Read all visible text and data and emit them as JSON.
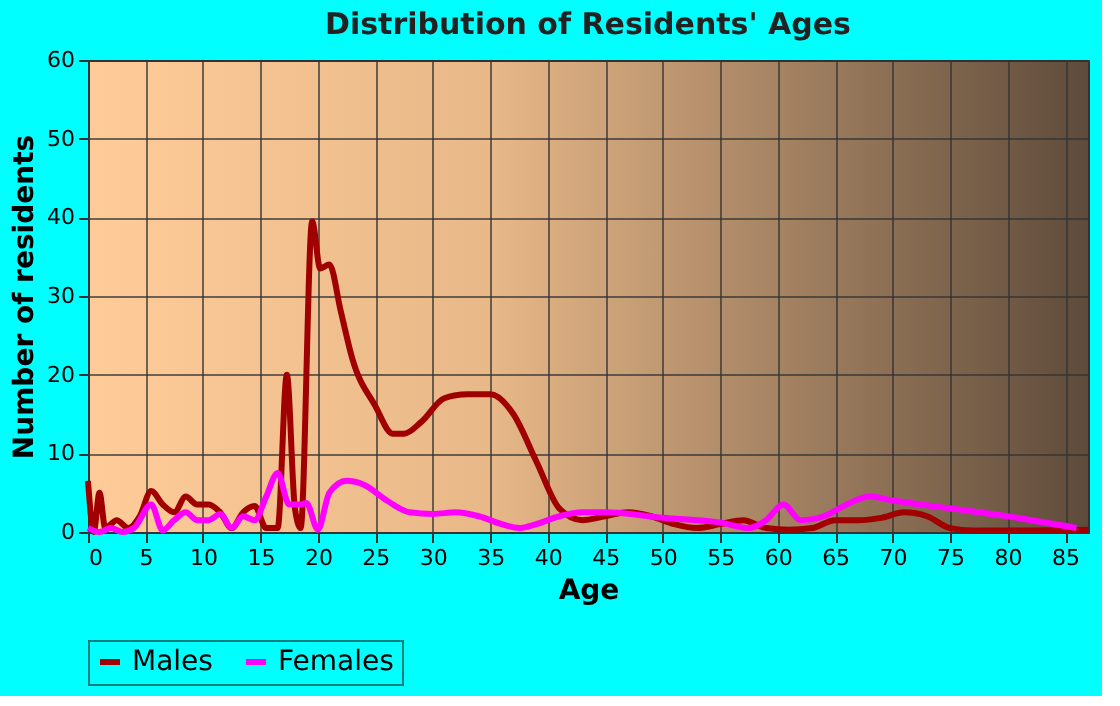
{
  "chart_data": {
    "type": "line",
    "title": "Distribution of Residents' Ages",
    "xlabel": "Age",
    "ylabel": "Number of residents",
    "xlim": [
      0,
      87
    ],
    "xticks": [
      0,
      5,
      10,
      15,
      20,
      25,
      30,
      35,
      40,
      45,
      50,
      55,
      60,
      65,
      70,
      75,
      80,
      85
    ],
    "ylim": [
      0,
      60
    ],
    "yticks": [
      0,
      10,
      20,
      30,
      40,
      50,
      60
    ],
    "grid": true,
    "legend": "bottom",
    "marker": "none",
    "line_style": "solid",
    "series": [
      {
        "name": "Males",
        "color": "#a00000",
        "x": [
          0,
          0.5,
          1,
          1.5,
          2.5,
          3.5,
          4.5,
          5.5,
          6.5,
          7.5,
          8.5,
          9.5,
          10.5,
          11.5,
          12.5,
          13.5,
          14.5,
          15.5,
          16.5,
          17.3,
          18,
          18.5,
          19.5,
          20.2,
          21,
          22,
          23,
          25,
          26.5,
          27.5,
          29,
          31,
          33,
          35,
          37,
          39,
          41,
          43,
          45,
          47,
          49,
          51,
          53,
          55,
          57,
          59,
          61,
          63,
          65,
          67,
          69,
          71,
          73,
          75,
          77,
          80,
          87
        ],
        "values": [
          6.5,
          0,
          5,
          0.5,
          1.5,
          0.5,
          2,
          5.2,
          3.5,
          2.5,
          4.5,
          3.5,
          3.5,
          2.5,
          0.5,
          2.5,
          3.3,
          0.5,
          0.5,
          20,
          3,
          0.5,
          39.5,
          33.5,
          34,
          28,
          22,
          16,
          12.5,
          12.5,
          14,
          17,
          17.5,
          17.5,
          15,
          9,
          3,
          1.5,
          2,
          2.5,
          2,
          1,
          0.5,
          1,
          1.5,
          0.5,
          0.3,
          0.5,
          1.5,
          1.5,
          1.8,
          2.5,
          2,
          0.5,
          0.2,
          0.2,
          0.3
        ]
      },
      {
        "name": "Females",
        "color": "#ff00ff",
        "x": [
          0,
          1,
          2,
          3,
          4,
          5.5,
          6.5,
          7.5,
          8.5,
          9.5,
          10.5,
          11.5,
          12.5,
          13.5,
          14.5,
          15.5,
          16.5,
          17.5,
          18.5,
          19,
          20,
          21,
          22.5,
          24,
          26,
          28,
          30,
          32,
          34,
          36,
          37.5,
          39,
          41,
          43,
          45,
          50,
          55,
          57.5,
          59,
          60.5,
          62,
          64,
          66,
          68,
          70,
          75,
          80,
          86
        ],
        "values": [
          0.5,
          0,
          0.5,
          0,
          0.5,
          3.5,
          0.2,
          1.5,
          2.5,
          1.5,
          1.5,
          2.3,
          0.5,
          2,
          1.5,
          4.5,
          7.5,
          3.5,
          3.5,
          3.7,
          0.3,
          5,
          6.5,
          6,
          4,
          2.5,
          2.3,
          2.5,
          2,
          1,
          0.5,
          1,
          2,
          2.5,
          2.5,
          1.8,
          1.2,
          0.5,
          1.5,
          3.5,
          1.5,
          2,
          3.5,
          4.5,
          4,
          3,
          2,
          0.5
        ]
      }
    ]
  }
}
